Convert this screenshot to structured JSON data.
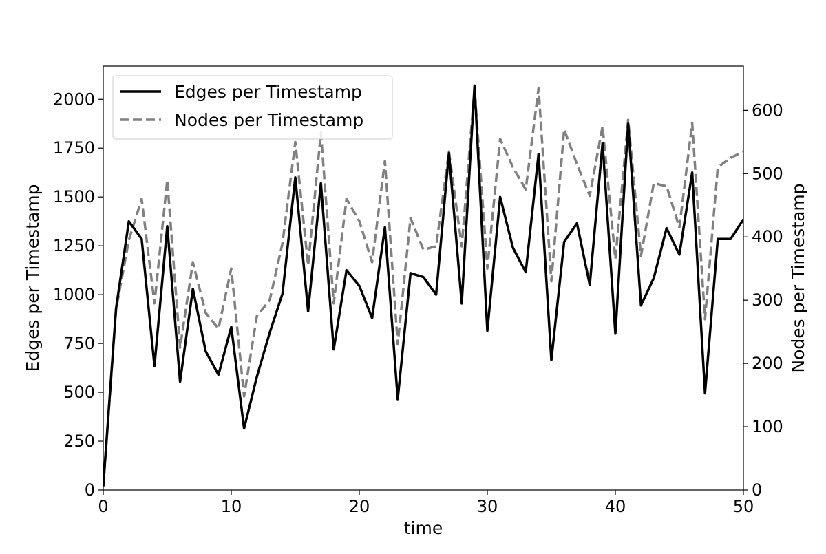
{
  "chart_data": {
    "type": "line",
    "title": "",
    "xlabel": "time",
    "ylabel_left": "Edges per Timestamp",
    "ylabel_right": "Nodes per Timestamp",
    "xlim": [
      0,
      50
    ],
    "ylim_left": [
      0,
      2170
    ],
    "ylim_right": [
      0,
      670
    ],
    "x_ticks": [
      "0",
      "10",
      "20",
      "30",
      "40",
      "50"
    ],
    "y_ticks_left": [
      "0",
      "250",
      "500",
      "750",
      "1000",
      "1250",
      "1500",
      "1750",
      "2000"
    ],
    "y_ticks_right": [
      "0",
      "100",
      "200",
      "300",
      "400",
      "500",
      "600"
    ],
    "grid": false,
    "legend_position": "top-left",
    "x": [
      0,
      1,
      2,
      3,
      4,
      5,
      6,
      7,
      8,
      9,
      10,
      11,
      12,
      13,
      14,
      15,
      16,
      17,
      18,
      19,
      20,
      21,
      22,
      23,
      24,
      25,
      26,
      27,
      28,
      29,
      30,
      31,
      32,
      33,
      34,
      35,
      36,
      37,
      38,
      39,
      40,
      41,
      42,
      43,
      44,
      45,
      46,
      47,
      48,
      49,
      50
    ],
    "series": [
      {
        "name": "Edges per Timestamp",
        "axis": "left",
        "color": "#000000",
        "style": "solid",
        "values": [
          20,
          930,
          1375,
          1285,
          635,
          1350,
          555,
          1030,
          710,
          590,
          835,
          315,
          580,
          805,
          1005,
          1600,
          915,
          1570,
          720,
          1125,
          1045,
          880,
          1345,
          465,
          1110,
          1090,
          1000,
          1725,
          955,
          2070,
          815,
          1500,
          1240,
          1115,
          1720,
          665,
          1270,
          1365,
          1050,
          1775,
          800,
          1875,
          945,
          1085,
          1340,
          1205,
          1625,
          495,
          1285,
          1285,
          1385
        ]
      },
      {
        "name": "Nodes per Timestamp",
        "axis": "right",
        "color": "#808080",
        "style": "dashed",
        "values": [
          5,
          285,
          395,
          460,
          295,
          490,
          225,
          360,
          280,
          255,
          350,
          148,
          275,
          300,
          390,
          550,
          355,
          565,
          295,
          460,
          425,
          360,
          520,
          230,
          430,
          380,
          385,
          535,
          385,
          635,
          350,
          555,
          510,
          475,
          635,
          330,
          570,
          515,
          465,
          575,
          365,
          585,
          370,
          485,
          480,
          415,
          580,
          270,
          510,
          525,
          535
        ]
      }
    ]
  }
}
